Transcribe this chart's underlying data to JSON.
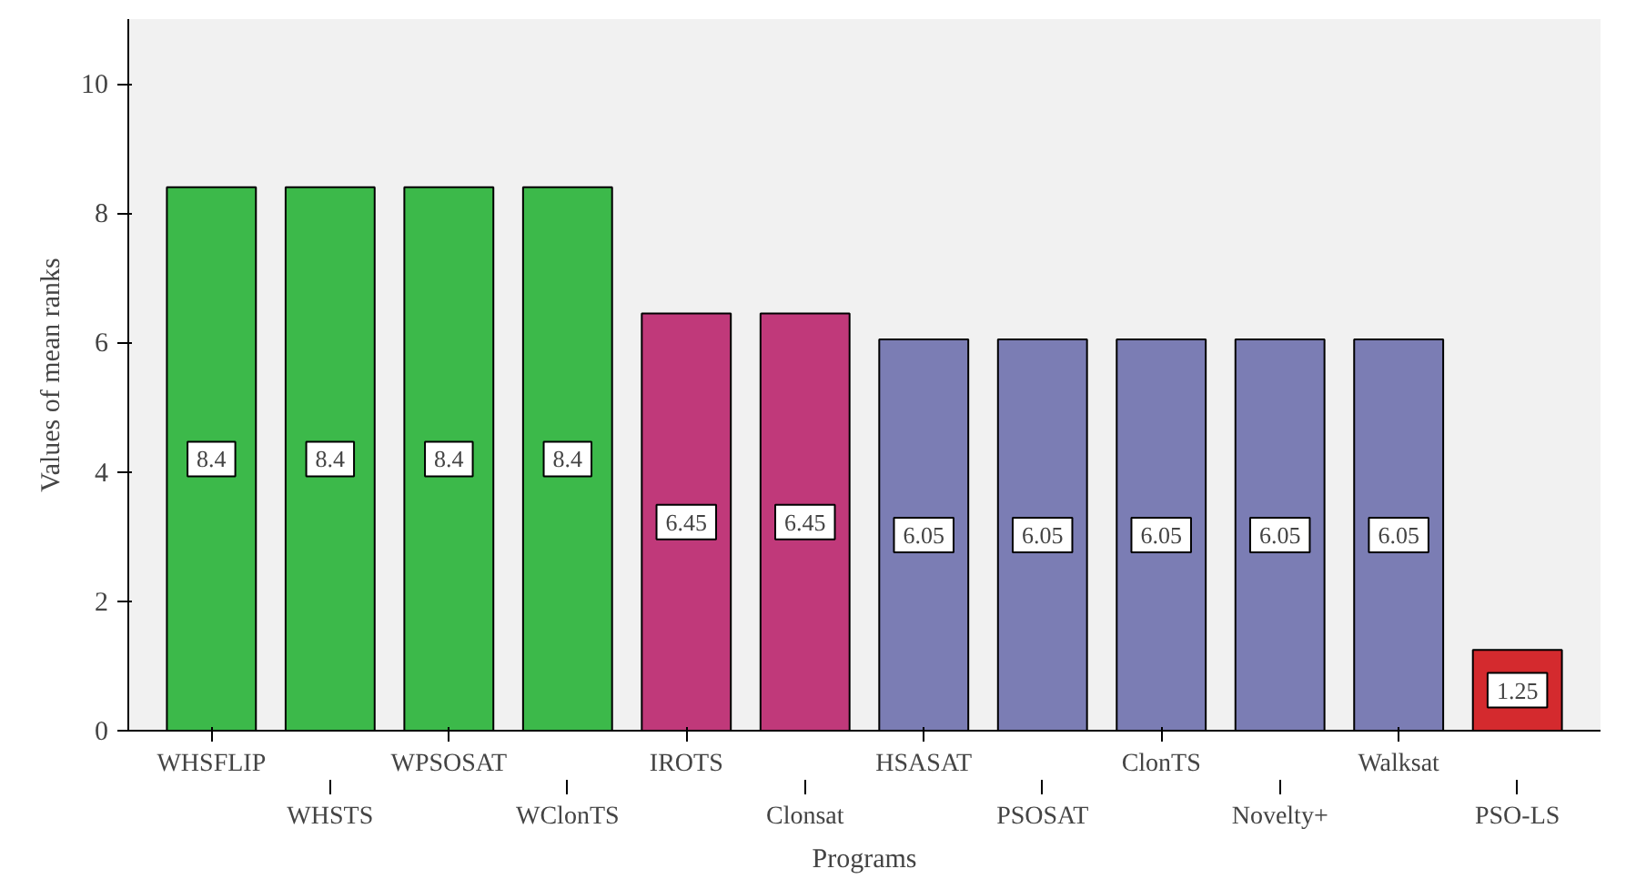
{
  "chart_data": {
    "type": "bar",
    "xlabel": "Programs",
    "ylabel": "Values of mean ranks",
    "categories": [
      "WHSFLIP",
      "WHSTS",
      "WPSOSAT",
      "WClonTS",
      "IROTS",
      "Clonsat",
      "HSASAT",
      "PSOSAT",
      "ClonTS",
      "Novelty+",
      "Walksat",
      "PSO-LS"
    ],
    "values": [
      8.4,
      8.4,
      8.4,
      8.4,
      6.45,
      6.45,
      6.05,
      6.05,
      6.05,
      6.05,
      6.05,
      1.25
    ],
    "colors": [
      "#3cb94a",
      "#3cb94a",
      "#3cb94a",
      "#3cb94a",
      "#c0397a",
      "#c0397a",
      "#7b7db4",
      "#7b7db4",
      "#7b7db4",
      "#7b7db4",
      "#7b7db4",
      "#d42a2e"
    ],
    "ylim": [
      0,
      11
    ],
    "yticks": [
      0,
      2,
      4,
      6,
      8,
      10
    ],
    "data_labels": true,
    "grid": false
  }
}
